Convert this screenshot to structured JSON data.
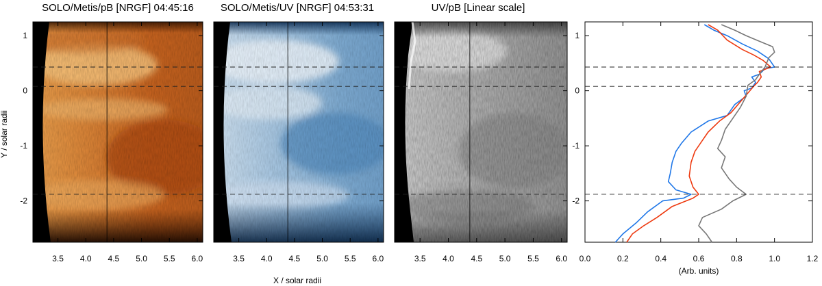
{
  "chart_data": [
    {
      "type": "heatmap",
      "title": "SOLO/Metis/pB [NRGF] 04:45:16",
      "xlabel": "X / solar radii",
      "ylabel": "Y / solar radii",
      "xlim": [
        3.05,
        6.1
      ],
      "ylim": [
        -2.75,
        1.25
      ],
      "xticks": [
        "3.5",
        "4.0",
        "4.5",
        "5.0",
        "5.5",
        "6.0"
      ],
      "yticks": [
        "1",
        "0",
        "-1",
        "-2"
      ],
      "colormap": "orange",
      "vertical_cut_x": 4.38,
      "dashed_y": [
        0.43,
        0.08,
        -1.88
      ]
    },
    {
      "type": "heatmap",
      "title": "SOLO/Metis/UV [NRGF] 04:53:31",
      "xlabel": "X / solar radii",
      "xlim": [
        3.05,
        6.1
      ],
      "ylim": [
        -2.75,
        1.25
      ],
      "xticks": [
        "3.5",
        "4.0",
        "4.5",
        "5.0",
        "5.5",
        "6.0"
      ],
      "colormap": "blue",
      "vertical_cut_x": 4.38,
      "dashed_y": [
        0.43,
        0.08,
        -1.88
      ]
    },
    {
      "type": "heatmap",
      "title": "UV/pB [Linear scale]",
      "xlim": [
        3.05,
        6.1
      ],
      "ylim": [
        -2.75,
        1.25
      ],
      "xticks": [
        "3.5",
        "4.0",
        "4.5",
        "5.0",
        "5.5",
        "6.0"
      ],
      "colormap": "gray",
      "vertical_cut_x": 4.38,
      "dashed_y": [
        0.43,
        0.08,
        -1.88
      ]
    },
    {
      "type": "line",
      "xlabel": "(Arb. units)",
      "xlim": [
        0.0,
        1.2
      ],
      "ylim": [
        -2.75,
        1.25
      ],
      "xticks": [
        "0.0",
        "0.2",
        "0.4",
        "0.6",
        "0.8",
        "1.0",
        "1.2"
      ],
      "yticks": [
        "1",
        "0",
        "-1",
        "-2"
      ],
      "dashed_y": [
        0.43,
        0.08,
        -1.88
      ],
      "series": [
        {
          "color": "#1f77e8",
          "points": [
            [
              0.63,
              1.2
            ],
            [
              0.68,
              1.1
            ],
            [
              0.75,
              1.0
            ],
            [
              0.83,
              0.85
            ],
            [
              0.91,
              0.72
            ],
            [
              0.97,
              0.58
            ],
            [
              1.0,
              0.43
            ],
            [
              0.95,
              0.4
            ],
            [
              0.92,
              0.3
            ],
            [
              0.88,
              0.25
            ],
            [
              0.9,
              0.15
            ],
            [
              0.88,
              0.05
            ],
            [
              0.84,
              0.0
            ],
            [
              0.85,
              -0.1
            ],
            [
              0.79,
              -0.25
            ],
            [
              0.75,
              -0.45
            ],
            [
              0.65,
              -0.55
            ],
            [
              0.56,
              -0.75
            ],
            [
              0.51,
              -0.95
            ],
            [
              0.48,
              -1.1
            ],
            [
              0.46,
              -1.3
            ],
            [
              0.45,
              -1.5
            ],
            [
              0.44,
              -1.65
            ],
            [
              0.48,
              -1.8
            ],
            [
              0.56,
              -1.88
            ],
            [
              0.52,
              -1.95
            ],
            [
              0.41,
              -2.0
            ],
            [
              0.33,
              -2.2
            ],
            [
              0.27,
              -2.4
            ],
            [
              0.2,
              -2.6
            ],
            [
              0.16,
              -2.75
            ]
          ]
        },
        {
          "color": "#ee3a10",
          "points": [
            [
              0.65,
              1.2
            ],
            [
              0.7,
              1.1
            ],
            [
              0.75,
              0.92
            ],
            [
              0.83,
              0.75
            ],
            [
              0.89,
              0.65
            ],
            [
              0.94,
              0.55
            ],
            [
              0.98,
              0.43
            ],
            [
              0.92,
              0.35
            ],
            [
              0.93,
              0.25
            ],
            [
              0.91,
              0.15
            ],
            [
              0.89,
              0.08
            ],
            [
              0.87,
              0.0
            ],
            [
              0.82,
              -0.2
            ],
            [
              0.77,
              -0.4
            ],
            [
              0.71,
              -0.55
            ],
            [
              0.65,
              -0.75
            ],
            [
              0.62,
              -0.9
            ],
            [
              0.58,
              -1.1
            ],
            [
              0.56,
              -1.3
            ],
            [
              0.55,
              -1.55
            ],
            [
              0.57,
              -1.75
            ],
            [
              0.6,
              -1.88
            ],
            [
              0.57,
              -1.95
            ],
            [
              0.46,
              -2.1
            ],
            [
              0.38,
              -2.3
            ],
            [
              0.31,
              -2.45
            ],
            [
              0.25,
              -2.6
            ],
            [
              0.22,
              -2.75
            ]
          ]
        },
        {
          "color": "#777777",
          "points": [
            [
              0.72,
              1.2
            ],
            [
              0.79,
              1.1
            ],
            [
              0.85,
              1.0
            ],
            [
              0.92,
              0.9
            ],
            [
              0.99,
              0.8
            ],
            [
              1.0,
              0.7
            ],
            [
              0.97,
              0.6
            ],
            [
              0.95,
              0.43
            ],
            [
              0.92,
              0.3
            ],
            [
              0.9,
              0.2
            ],
            [
              0.86,
              0.1
            ],
            [
              0.85,
              -0.1
            ],
            [
              0.82,
              -0.3
            ],
            [
              0.78,
              -0.5
            ],
            [
              0.74,
              -0.7
            ],
            [
              0.72,
              -0.9
            ],
            [
              0.7,
              -1.05
            ],
            [
              0.74,
              -1.2
            ],
            [
              0.72,
              -1.4
            ],
            [
              0.76,
              -1.6
            ],
            [
              0.8,
              -1.75
            ],
            [
              0.85,
              -1.88
            ],
            [
              0.78,
              -2.0
            ],
            [
              0.72,
              -2.15
            ],
            [
              0.62,
              -2.3
            ],
            [
              0.6,
              -2.45
            ],
            [
              0.64,
              -2.6
            ],
            [
              0.67,
              -2.75
            ]
          ]
        }
      ]
    }
  ]
}
